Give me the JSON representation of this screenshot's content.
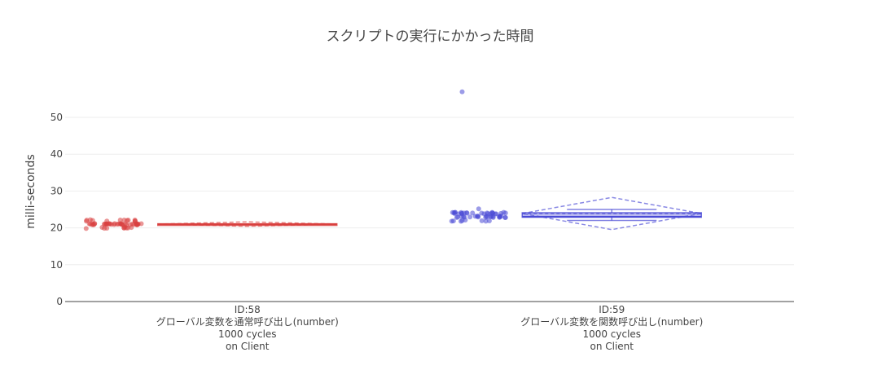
{
  "chart_data": {
    "type": "box",
    "title": "スクリプトの実行にかかった時間",
    "ylabel": "milli-seconds",
    "xlabel": "",
    "ylim": [
      0,
      60
    ],
    "yticks": [
      0,
      10,
      20,
      30,
      40,
      50
    ],
    "grid": true,
    "boxpoints": "all",
    "boxmean": "sd",
    "categories": [
      {
        "lines": [
          "ID:58",
          "グローバル変数を通常呼び出し(number)",
          "1000 cycles",
          "on Client"
        ]
      },
      {
        "lines": [
          "ID:59",
          "グローバル変数を関数呼び出し(number)",
          "1000 cycles",
          "on Client"
        ]
      }
    ],
    "series": [
      {
        "color": "#d9403f",
        "values": [
          20,
          20,
          20,
          20,
          20,
          20,
          20,
          20,
          20,
          20,
          21,
          21,
          21,
          21,
          21,
          21,
          21,
          21,
          21,
          21,
          21,
          21,
          21,
          21,
          21,
          21,
          21,
          21,
          21,
          21,
          21,
          21,
          21,
          21,
          21,
          21,
          21,
          21,
          21,
          21,
          21,
          21,
          21,
          21,
          21,
          21,
          21,
          21,
          22,
          22,
          22,
          22,
          22,
          22,
          22,
          22,
          22,
          22,
          22,
          22
        ]
      },
      {
        "color": "#4a4ad6",
        "values": [
          22,
          22,
          22,
          22,
          22,
          22,
          22,
          22,
          23,
          23,
          23,
          23,
          23,
          23,
          23,
          23,
          23,
          23,
          23,
          23,
          23,
          23,
          23,
          23,
          23,
          23,
          23,
          23,
          23,
          23,
          23,
          23,
          24,
          24,
          24,
          24,
          24,
          24,
          24,
          24,
          24,
          24,
          24,
          24,
          24,
          24,
          24,
          24,
          24,
          24,
          24,
          24,
          24,
          24,
          24,
          24,
          24,
          24,
          25,
          57
        ]
      }
    ]
  }
}
